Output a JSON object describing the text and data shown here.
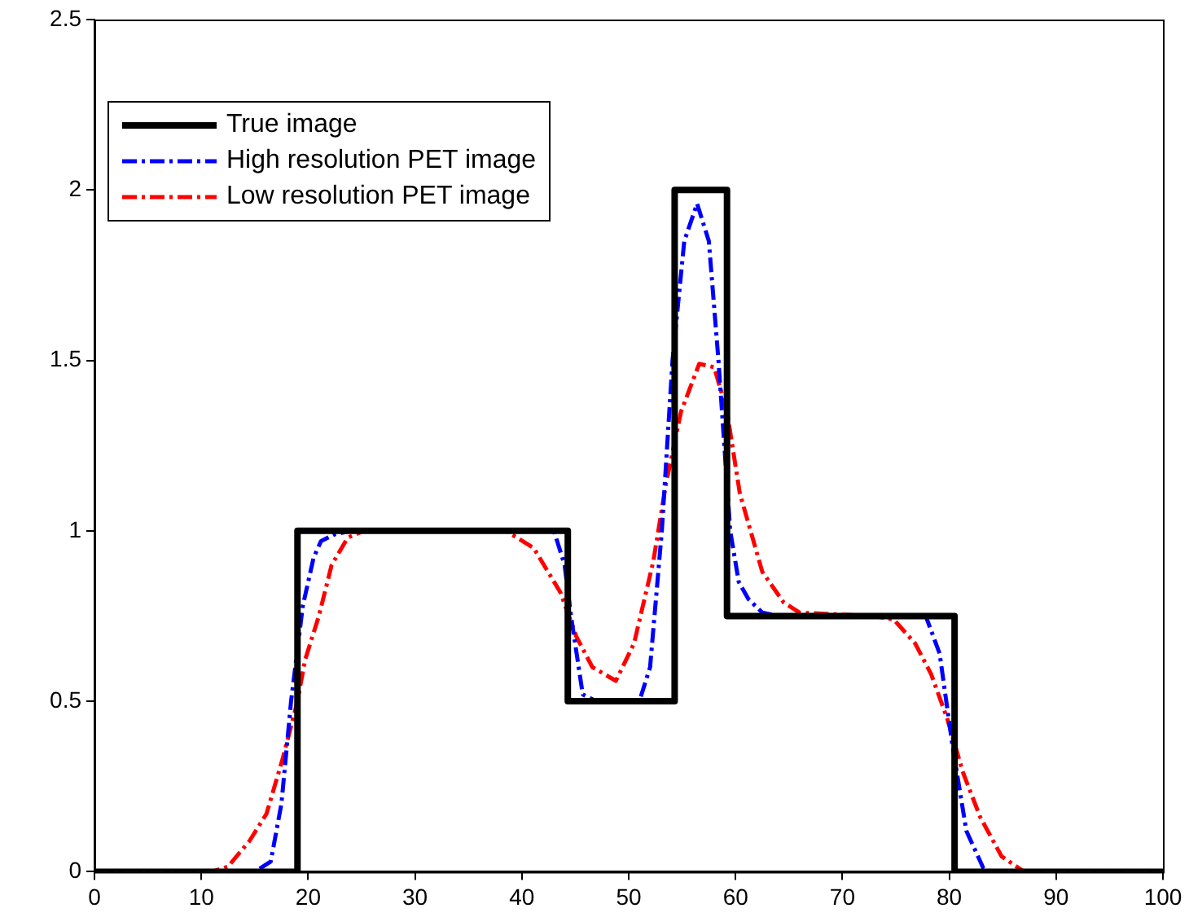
{
  "chart_data": {
    "type": "line",
    "xlim": [
      0,
      100
    ],
    "xticks": [
      0,
      10,
      20,
      30,
      40,
      50,
      60,
      70,
      80,
      90,
      100
    ],
    "ylim": [
      0,
      2.5
    ],
    "yticks": [
      0,
      0.5,
      1,
      1.5,
      2,
      2.5
    ],
    "grid": false,
    "legend": "top left",
    "marker": "none",
    "series": [
      {
        "name": "True image",
        "color": "#000000",
        "line_style": "solid",
        "x": [
          0,
          19,
          19,
          44.3,
          44.3,
          54.3,
          54.3,
          59.2,
          59.2,
          80.5,
          80.5,
          100
        ],
        "values": [
          0,
          0,
          1,
          1,
          0.5,
          0.5,
          2,
          2,
          0.75,
          0.75,
          0,
          0
        ]
      },
      {
        "name": "High resolution PET image",
        "color": "#0000ff",
        "line_style": "dashed",
        "x": [
          0,
          15,
          16.5,
          17.5,
          18.4,
          19.5,
          20.5,
          21.2,
          22.5,
          24,
          43,
          44,
          44.6,
          45.7,
          47,
          51,
          52,
          53.1,
          54.1,
          55.2,
          56.4,
          57.5,
          58.4,
          59.5,
          60.3,
          61.2,
          62.5,
          64,
          77.8,
          79.1,
          80.3,
          81.6,
          83.2,
          84,
          100
        ],
        "values": [
          0,
          0,
          0.03,
          0.2,
          0.5,
          0.78,
          0.92,
          0.97,
          0.99,
          1,
          1,
          0.9,
          0.75,
          0.52,
          0.5,
          0.5,
          0.6,
          1,
          1.5,
          1.85,
          1.96,
          1.85,
          1.5,
          1,
          0.85,
          0.8,
          0.76,
          0.75,
          0.75,
          0.64,
          0.37,
          0.12,
          0.01,
          0,
          0
        ]
      },
      {
        "name": "Low resolution PET image",
        "color": "#ff0000",
        "line_style": "dashed",
        "x": [
          0,
          11,
          12.5,
          14.5,
          16.1,
          17.6,
          19,
          19.7,
          21,
          22.2,
          23.7,
          25.2,
          38.5,
          41.1,
          43.6,
          45.1,
          46.6,
          48.8,
          50.5,
          52.3,
          53.5,
          54.9,
          56.6,
          58,
          59.2,
          60.4,
          62.5,
          64.5,
          66,
          73,
          74.8,
          76.8,
          78.3,
          79.8,
          81.3,
          82.9,
          84.9,
          87,
          100
        ],
        "values": [
          0,
          0,
          0.015,
          0.09,
          0.17,
          0.33,
          0.5,
          0.62,
          0.75,
          0.9,
          0.98,
          1,
          1,
          0.95,
          0.82,
          0.69,
          0.6,
          0.56,
          0.67,
          0.91,
          1.14,
          1.35,
          1.49,
          1.48,
          1.35,
          1.11,
          0.88,
          0.79,
          0.76,
          0.75,
          0.74,
          0.67,
          0.58,
          0.45,
          0.29,
          0.16,
          0.045,
          0,
          0
        ]
      }
    ]
  }
}
